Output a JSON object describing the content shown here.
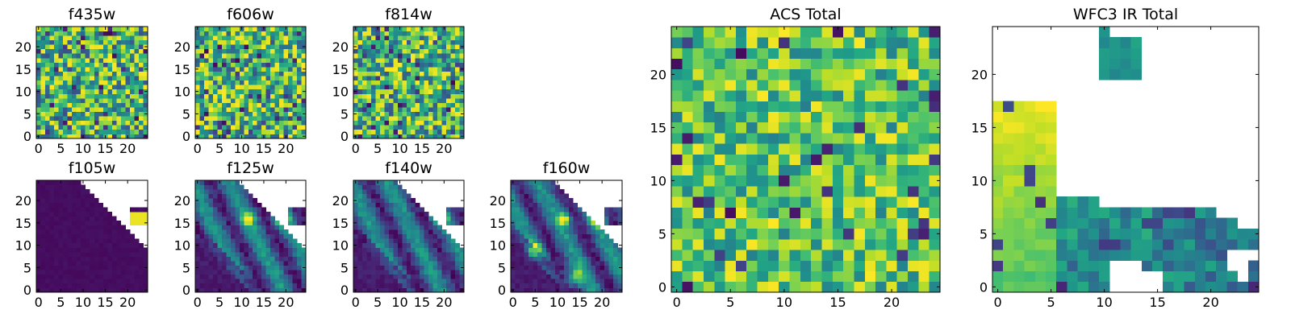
{
  "chart_data": [
    {
      "id": "f435w",
      "type": "heatmap",
      "title": "f435w",
      "grid_size": [
        25,
        25
      ],
      "colormap": "viridis",
      "xlim": [
        -0.5,
        24.5
      ],
      "ylim": [
        -0.5,
        24.5
      ],
      "xticks": [
        0,
        5,
        10,
        15,
        20
      ],
      "yticks": [
        0,
        5,
        10,
        15,
        20
      ],
      "values_note": "pixel-level noise field (high-frequency, mostly mid-to-high values)"
    },
    {
      "id": "f606w",
      "type": "heatmap",
      "title": "f606w",
      "grid_size": [
        25,
        25
      ],
      "colormap": "viridis",
      "xlim": [
        -0.5,
        24.5
      ],
      "ylim": [
        -0.5,
        24.5
      ],
      "xticks": [
        0,
        5,
        10,
        15,
        20
      ],
      "yticks": [
        0,
        5,
        10,
        15,
        20
      ],
      "values_note": "pixel-level noise field"
    },
    {
      "id": "f814w",
      "type": "heatmap",
      "title": "f814w",
      "grid_size": [
        25,
        25
      ],
      "colormap": "viridis",
      "xlim": [
        -0.5,
        24.5
      ],
      "ylim": [
        -0.5,
        24.5
      ],
      "xticks": [
        0,
        5,
        10,
        15,
        20
      ],
      "yticks": [
        0,
        5,
        10,
        15,
        20
      ],
      "values_note": "pixel-level noise field"
    },
    {
      "id": "f105w",
      "type": "heatmap",
      "title": "f105w",
      "grid_size": [
        25,
        25
      ],
      "colormap": "viridis",
      "xlim": [
        -0.5,
        24.5
      ],
      "ylim": [
        -0.5,
        24.5
      ],
      "xticks": [
        0,
        5,
        10,
        15,
        20
      ],
      "yticks": [
        0,
        5,
        10,
        15,
        20
      ],
      "mask": "upper-right diagonal blank region",
      "values_note": "near-uniform low values with a bright spot near x=22,y=17"
    },
    {
      "id": "f125w",
      "type": "heatmap",
      "title": "f125w",
      "grid_size": [
        25,
        25
      ],
      "colormap": "viridis",
      "xlim": [
        -0.5,
        24.5
      ],
      "ylim": [
        -0.5,
        24.5
      ],
      "xticks": [
        0,
        5,
        10,
        15,
        20
      ],
      "yticks": [
        0,
        5,
        10,
        15,
        20
      ],
      "mask": "upper-right diagonal blank region",
      "values_note": "diagonal band structure, bright spots near (11,16) and (19,16)"
    },
    {
      "id": "f140w",
      "type": "heatmap",
      "title": "f140w",
      "grid_size": [
        25,
        25
      ],
      "colormap": "viridis",
      "xlim": [
        -0.5,
        24.5
      ],
      "ylim": [
        -0.5,
        24.5
      ],
      "xticks": [
        0,
        5,
        10,
        15,
        20
      ],
      "yticks": [
        0,
        5,
        10,
        15,
        20
      ],
      "mask": "upper-right diagonal blank region",
      "values_note": "diagonal band structure, bright spot near (19,16)"
    },
    {
      "id": "f160w",
      "type": "heatmap",
      "title": "f160w",
      "grid_size": [
        25,
        25
      ],
      "colormap": "viridis",
      "xlim": [
        -0.5,
        24.5
      ],
      "ylim": [
        -0.5,
        24.5
      ],
      "xticks": [
        0,
        5,
        10,
        15,
        20
      ],
      "yticks": [
        0,
        5,
        10,
        15,
        20
      ],
      "mask": "upper-right diagonal blank region",
      "values_note": "diagonal band structure, bright spots near (12,16) and (19,15)"
    },
    {
      "id": "acs_total",
      "type": "heatmap",
      "title": "ACS Total",
      "grid_size": [
        25,
        25
      ],
      "colormap": "viridis",
      "xlim": [
        -0.5,
        24.5
      ],
      "ylim": [
        -0.5,
        24.5
      ],
      "xticks": [
        0,
        5,
        10,
        15,
        20
      ],
      "yticks": [
        0,
        5,
        10,
        15,
        20
      ],
      "values_note": "noise field dominated by greens/yellows with scattered dark pixels"
    },
    {
      "id": "wfc3_ir_total",
      "type": "heatmap",
      "title": "WFC3 IR Total",
      "grid_size": [
        25,
        25
      ],
      "colormap": "viridis",
      "xlim": [
        -0.5,
        24.5
      ],
      "ylim": [
        -0.5,
        24.5
      ],
      "xticks": [
        0,
        5,
        10,
        15,
        20
      ],
      "yticks": [
        0,
        5,
        10,
        15,
        20
      ],
      "mask": "large blank upper-right area; valid pixels lower-left plus small island near (11,21)",
      "values_note": "yellow on the left edge, teal/green toward bottom-right"
    }
  ]
}
